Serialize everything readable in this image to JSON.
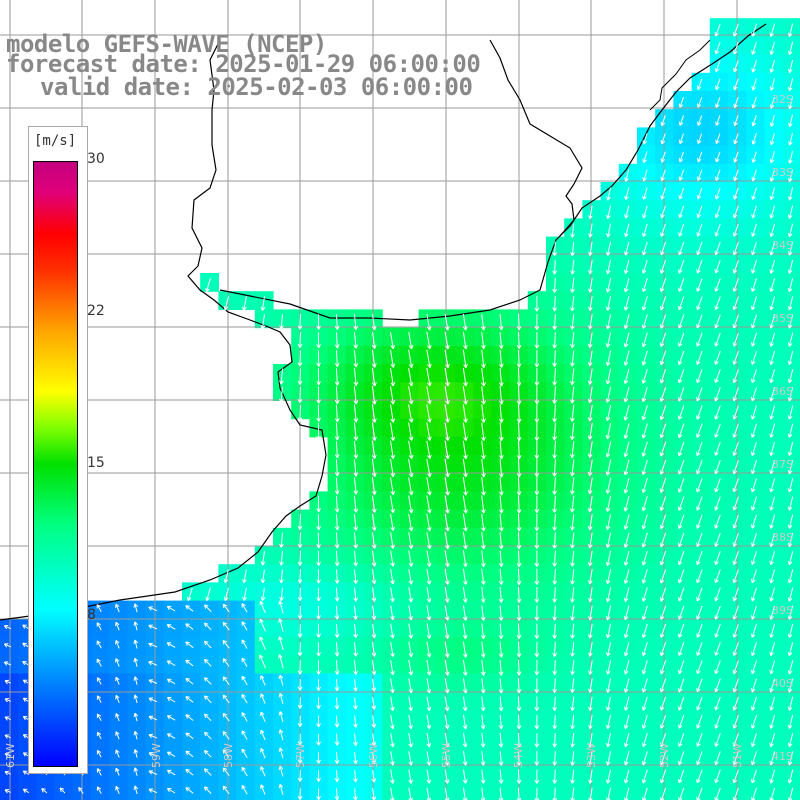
{
  "header": {
    "title": "modelo GEFS-WAVE (NCEP)",
    "forecast": "forecast date: 2025-01-29 06:00:00",
    "valid": "valid date: 2025-02-03 06:00:00"
  },
  "colorbar": {
    "units": "[m/s]",
    "ticks": [
      "30",
      "22",
      "15",
      "8"
    ],
    "min_value": 0,
    "max_value": 30
  },
  "lat_labels": [
    "32S",
    "33S",
    "34S",
    "35S",
    "36S",
    "37S",
    "38S",
    "39S",
    "40S",
    "41S"
  ],
  "lon_labels": [
    "61W",
    "60W",
    "59W",
    "58W",
    "57W",
    "56W",
    "55W",
    "54W",
    "53W",
    "52W",
    "51W"
  ],
  "colors": {
    "land": "#ffffff",
    "grid": "#9a9a9a",
    "coast": "#000000",
    "arrow": "#ffffff",
    "title": "#888888"
  }
}
